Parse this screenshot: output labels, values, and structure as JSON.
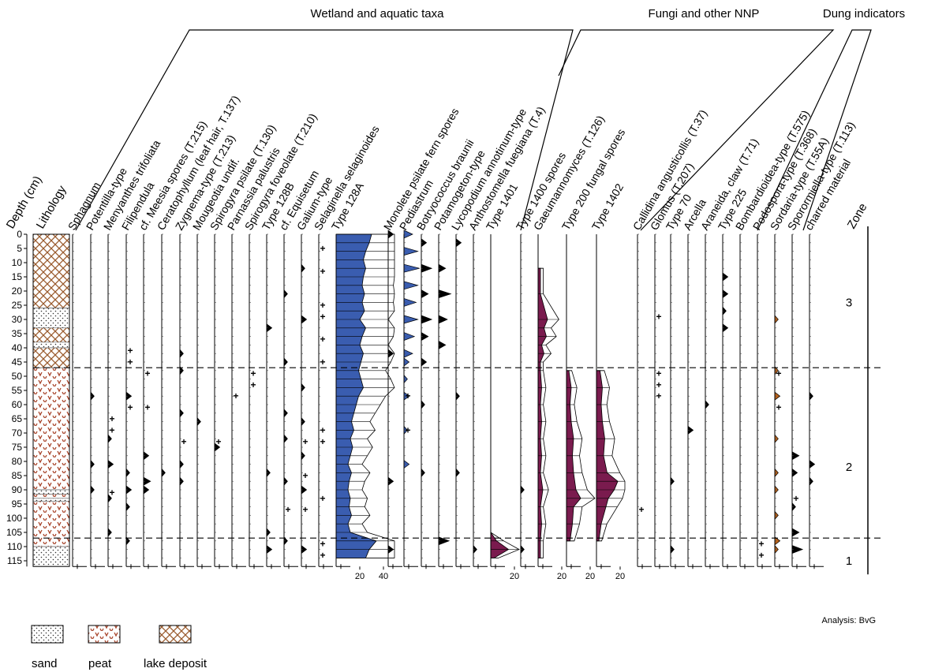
{
  "chart_data": {
    "type": "pollen_diagram",
    "y_axis": {
      "label": "Depth (cm)",
      "ticks": [
        0,
        5,
        10,
        15,
        20,
        25,
        30,
        35,
        40,
        45,
        50,
        55,
        60,
        65,
        70,
        75,
        80,
        85,
        90,
        95,
        100,
        105,
        110,
        115
      ],
      "range": [
        0,
        117
      ],
      "inverted": true
    },
    "group_labels": [
      "Wetland and aquatic taxa",
      "Fungi and other NNP",
      "Dung indicators"
    ],
    "lithology": {
      "label": "Lithology",
      "legend": [
        {
          "key": "sand",
          "label": "sand"
        },
        {
          "key": "peat",
          "label": "peat"
        },
        {
          "key": "lake",
          "label": "lake deposit"
        }
      ],
      "units": [
        {
          "type": "lake",
          "from": 0,
          "to": 26
        },
        {
          "type": "sand",
          "from": 26,
          "to": 33
        },
        {
          "type": "lake",
          "from": 33,
          "to": 38
        },
        {
          "type": "sand",
          "from": 38,
          "to": 40
        },
        {
          "type": "lake",
          "from": 40,
          "to": 47
        },
        {
          "type": "peat",
          "from": 47,
          "to": 90
        },
        {
          "type": "sand",
          "from": 90,
          "to": 91.5
        },
        {
          "type": "peat",
          "from": 91.5,
          "to": 93
        },
        {
          "type": "sand",
          "from": 93,
          "to": 94
        },
        {
          "type": "peat",
          "from": 94,
          "to": 110
        },
        {
          "type": "sand",
          "from": 110,
          "to": 117
        }
      ]
    },
    "sample_depths": [
      0,
      3,
      6,
      9,
      12,
      15,
      18,
      21,
      24,
      27,
      30,
      33,
      36,
      39,
      42,
      45,
      48,
      51,
      54,
      57,
      60,
      63,
      66,
      69,
      72,
      75,
      78,
      81,
      84,
      87,
      90,
      93,
      96,
      99,
      102,
      105,
      108,
      111,
      114
    ],
    "columns": [
      {
        "name": "Sphagnum",
        "max": 0,
        "profile": []
      },
      {
        "name": "Potentilla-type",
        "max": 0,
        "profile": [
          [
            57,
            2
          ],
          [
            81,
            2
          ],
          [
            90,
            2
          ]
        ]
      },
      {
        "name": "Menyanthes trifoliata",
        "max": 0,
        "profile": [
          [
            72,
            2
          ],
          [
            81,
            3
          ],
          [
            93,
            2
          ],
          [
            105,
            2
          ]
        ],
        "plus": [
          65,
          69,
          91
        ]
      },
      {
        "name": "Filipendula",
        "max": 0,
        "profile": [
          [
            57,
            3
          ],
          [
            84,
            2
          ],
          [
            90,
            3
          ],
          [
            96,
            2
          ],
          [
            108,
            2
          ]
        ],
        "plus": [
          41,
          45,
          61
        ]
      },
      {
        "name": "cf. Meesia spores (T.215)",
        "max": 0,
        "profile": [
          [
            78,
            3
          ],
          [
            87,
            4
          ],
          [
            90,
            3
          ]
        ],
        "plus": [
          49,
          61
        ]
      },
      {
        "name": "Ceratophyllum (leaf hair, T.137)",
        "max": 0,
        "profile": [
          [
            84,
            2
          ]
        ]
      },
      {
        "name": "Zygnema-type (T.213)",
        "max": 0,
        "profile": [
          [
            42,
            2
          ],
          [
            48,
            2
          ],
          [
            63,
            2
          ],
          [
            81,
            2
          ],
          [
            87,
            2
          ]
        ],
        "plus": [
          73
        ]
      },
      {
        "name": "Mougeotia undif.",
        "max": 0,
        "profile": [
          [
            66,
            2
          ]
        ]
      },
      {
        "name": "Spirogyra psilate (T.130)",
        "max": 0,
        "profile": [
          [
            75,
            3
          ]
        ],
        "plus": [
          73
        ]
      },
      {
        "name": "Parnassia palustris",
        "max": 0,
        "profile": [],
        "plus": [
          57
        ]
      },
      {
        "name": "Spirogyra foveolate (T.210)",
        "max": 0,
        "profile": [],
        "plus": [
          49,
          53
        ]
      },
      {
        "name": "Type 128B",
        "max": 0,
        "profile": [
          [
            33,
            3
          ],
          [
            84,
            2
          ],
          [
            105,
            2
          ],
          [
            111,
            3
          ]
        ]
      },
      {
        "name": "cf. Equisetum",
        "max": 0,
        "profile": [
          [
            21,
            2
          ],
          [
            45,
            2
          ],
          [
            63,
            2
          ],
          [
            72,
            2
          ],
          [
            87,
            2
          ],
          [
            108,
            2
          ]
        ],
        "plus": [
          97
        ]
      },
      {
        "name": "Galium-type",
        "max": 0,
        "profile": [
          [
            12,
            2
          ],
          [
            30,
            3
          ],
          [
            54,
            2
          ],
          [
            66,
            2
          ],
          [
            78,
            2
          ],
          [
            90,
            3
          ],
          [
            111,
            3
          ]
        ],
        "plus": [
          73,
          85,
          97
        ]
      },
      {
        "name": "Selaginella selaginoides",
        "max": 0,
        "profile": [],
        "plus": [
          5,
          13,
          25,
          29,
          37,
          45,
          69,
          73,
          93,
          109,
          113
        ]
      },
      {
        "name": "Type 128A",
        "max": 40,
        "fill": "#3a5db0",
        "exag": true,
        "profile": [
          [
            0,
            30
          ],
          [
            3,
            28
          ],
          [
            6,
            25
          ],
          [
            9,
            23
          ],
          [
            12,
            25
          ],
          [
            15,
            23
          ],
          [
            18,
            22
          ],
          [
            21,
            24
          ],
          [
            24,
            22
          ],
          [
            27,
            24
          ],
          [
            30,
            20
          ],
          [
            33,
            25
          ],
          [
            36,
            22
          ],
          [
            39,
            20
          ],
          [
            42,
            23
          ],
          [
            45,
            21
          ],
          [
            48,
            19
          ],
          [
            51,
            21
          ],
          [
            54,
            23
          ],
          [
            57,
            19
          ],
          [
            60,
            17
          ],
          [
            63,
            15
          ],
          [
            66,
            13
          ],
          [
            69,
            15
          ],
          [
            72,
            12
          ],
          [
            75,
            14
          ],
          [
            78,
            12
          ],
          [
            81,
            10
          ],
          [
            84,
            13
          ],
          [
            87,
            11
          ],
          [
            90,
            10
          ],
          [
            93,
            12
          ],
          [
            96,
            11
          ],
          [
            99,
            13
          ],
          [
            102,
            10
          ],
          [
            105,
            12
          ],
          [
            108,
            34
          ],
          [
            111,
            28
          ],
          [
            114,
            25
          ]
        ]
      },
      {
        "name": "Monolete psilate fern spores",
        "max": 0,
        "profile": [
          [
            0,
            3
          ],
          [
            42,
            3
          ],
          [
            87,
            3
          ],
          [
            111,
            3
          ]
        ]
      },
      {
        "name": "Pediastrum",
        "max": 0,
        "fill": "#3a5db0",
        "profile": [
          [
            0,
            5
          ],
          [
            6,
            8
          ],
          [
            12,
            9
          ],
          [
            18,
            8
          ],
          [
            24,
            7
          ],
          [
            30,
            8
          ],
          [
            36,
            6
          ],
          [
            42,
            5
          ],
          [
            45,
            3
          ],
          [
            51,
            2
          ],
          [
            57,
            3
          ],
          [
            69,
            2
          ],
          [
            81,
            3
          ]
        ],
        "plus": [
          57,
          69
        ]
      },
      {
        "name": "Botryococcus braunii",
        "max": 0,
        "profile": [
          [
            3,
            3
          ],
          [
            12,
            6
          ],
          [
            21,
            4
          ],
          [
            30,
            6
          ],
          [
            36,
            4
          ],
          [
            45,
            3
          ],
          [
            60,
            2
          ],
          [
            84,
            2
          ]
        ]
      },
      {
        "name": "Potamogeton-type",
        "max": 0,
        "profile": [
          [
            12,
            4
          ],
          [
            21,
            7
          ],
          [
            30,
            5
          ],
          [
            39,
            4
          ],
          [
            108,
            6
          ]
        ]
      },
      {
        "name": "Lycopodium annotinum-type",
        "max": 0,
        "profile": [
          [
            3,
            3
          ],
          [
            57,
            2
          ],
          [
            84,
            2
          ]
        ]
      },
      {
        "name": "Anthostomella fuegiana (T.4)",
        "max": 0,
        "profile": [
          [
            111,
            2
          ]
        ]
      },
      {
        "name": "Type 1401",
        "max": 20,
        "fill": "#7a1b4e",
        "exag": true,
        "profile": [
          [
            105,
            0
          ],
          [
            108,
            5
          ],
          [
            111,
            15
          ],
          [
            114,
            3
          ]
        ]
      },
      {
        "name": "Type 1400 spores",
        "max": 0,
        "profile": [
          [
            90,
            2
          ],
          [
            111,
            2
          ]
        ]
      },
      {
        "name": "Gaeumannomyces (T.126)",
        "max": 20,
        "fill": "#7a1b4e",
        "exag": true,
        "profile": [
          [
            12,
            2
          ],
          [
            21,
            2
          ],
          [
            30,
            8
          ],
          [
            33,
            5
          ],
          [
            36,
            7
          ],
          [
            39,
            3
          ],
          [
            42,
            5
          ],
          [
            45,
            2
          ],
          [
            48,
            2
          ],
          [
            54,
            3
          ],
          [
            60,
            2
          ],
          [
            66,
            3
          ],
          [
            72,
            2
          ],
          [
            78,
            3
          ],
          [
            84,
            2
          ],
          [
            90,
            4
          ],
          [
            96,
            2
          ],
          [
            102,
            3
          ],
          [
            108,
            2
          ],
          [
            114,
            2
          ]
        ]
      },
      {
        "name": "Type 200 fungal spores",
        "max": 20,
        "fill": "#7a1b4e",
        "exag": true,
        "profile": [
          [
            48,
            2
          ],
          [
            54,
            4
          ],
          [
            60,
            3
          ],
          [
            66,
            4
          ],
          [
            72,
            6
          ],
          [
            78,
            5
          ],
          [
            84,
            6
          ],
          [
            90,
            8
          ],
          [
            93,
            12
          ],
          [
            96,
            6
          ],
          [
            102,
            5
          ],
          [
            108,
            3
          ]
        ]
      },
      {
        "name": "Type 1402",
        "max": 20,
        "fill": "#7a1b4e",
        "exag": true,
        "profile": [
          [
            48,
            3
          ],
          [
            54,
            5
          ],
          [
            60,
            4
          ],
          [
            66,
            5
          ],
          [
            72,
            7
          ],
          [
            78,
            6
          ],
          [
            84,
            9
          ],
          [
            87,
            18
          ],
          [
            90,
            15
          ],
          [
            93,
            10
          ],
          [
            96,
            8
          ],
          [
            102,
            4
          ],
          [
            108,
            2
          ]
        ]
      },
      {
        "name": "Callidina angusticollis (T.37)",
        "max": 0,
        "profile": [],
        "plus": [
          97
        ]
      },
      {
        "name": "Glomus (T.207)",
        "max": 0,
        "profile": [],
        "plus": [
          29,
          49,
          53,
          57
        ]
      },
      {
        "name": "Type 70",
        "max": 0,
        "profile": [
          [
            87,
            2
          ],
          [
            111,
            2
          ]
        ]
      },
      {
        "name": "Arcella",
        "max": 0,
        "profile": [
          [
            69,
            3
          ]
        ]
      },
      {
        "name": "Araneida, claw (T.71)",
        "max": 0,
        "profile": [
          [
            60,
            2
          ]
        ]
      },
      {
        "name": "Type 225",
        "max": 0,
        "profile": [
          [
            15,
            3
          ],
          [
            21,
            3
          ],
          [
            27,
            2
          ],
          [
            33,
            3
          ]
        ]
      },
      {
        "name": "Bombardioidea-type (T.575)",
        "max": 0,
        "profile": []
      },
      {
        "name": "Podospora-type (T.368)",
        "max": 0,
        "profile": [],
        "plus": [
          109,
          113
        ]
      },
      {
        "name": "Sordaria-type (T.55A)",
        "max": 0,
        "fill": "#b8621b",
        "profile": [
          [
            30,
            2
          ],
          [
            48,
            2
          ],
          [
            57,
            3
          ],
          [
            72,
            2
          ],
          [
            84,
            2
          ],
          [
            90,
            2
          ],
          [
            99,
            2
          ],
          [
            108,
            3
          ],
          [
            111,
            2
          ]
        ],
        "plus": [
          49,
          61
        ]
      },
      {
        "name": "Sporormiella-type (T.113)",
        "max": 0,
        "profile": [
          [
            78,
            4
          ],
          [
            84,
            3
          ],
          [
            96,
            2
          ],
          [
            105,
            4
          ],
          [
            111,
            6
          ]
        ],
        "plus": [
          93
        ]
      },
      {
        "name": "charred material",
        "max": 0,
        "profile": [
          [
            57,
            2
          ],
          [
            81,
            3
          ],
          [
            87,
            2
          ]
        ]
      }
    ],
    "x_tick_labels": [
      {
        "column": "Type 128A",
        "ticks": [
          "20",
          "40"
        ]
      },
      {
        "column": "Type 1401",
        "ticks": [
          "20"
        ]
      },
      {
        "column": "Gaeumannomyces (T.126)",
        "ticks": [
          "20"
        ]
      },
      {
        "column": "Type 200 fungal spores",
        "ticks": [
          "20"
        ]
      },
      {
        "column": "Type 1402",
        "ticks": [
          "20"
        ]
      }
    ],
    "zones": {
      "label": "Zone",
      "boundaries": [
        47,
        107
      ],
      "items": [
        {
          "name": "3",
          "depth": 24
        },
        {
          "name": "2",
          "depth": 82
        },
        {
          "name": "1",
          "depth": 115
        }
      ]
    },
    "analysis_note": "Analysis: BvG",
    "colors": {
      "wetland_fill": "#3a5db0",
      "fungi_fill": "#7a1b4e",
      "dung_fill": "#b8621b",
      "plus_blue": "#3a5db0",
      "plus_purple": "#7a1b4e",
      "plus_orange": "#b8621b",
      "peat_red": "#a8442a",
      "lake_brown": "#9a5b2e"
    }
  }
}
